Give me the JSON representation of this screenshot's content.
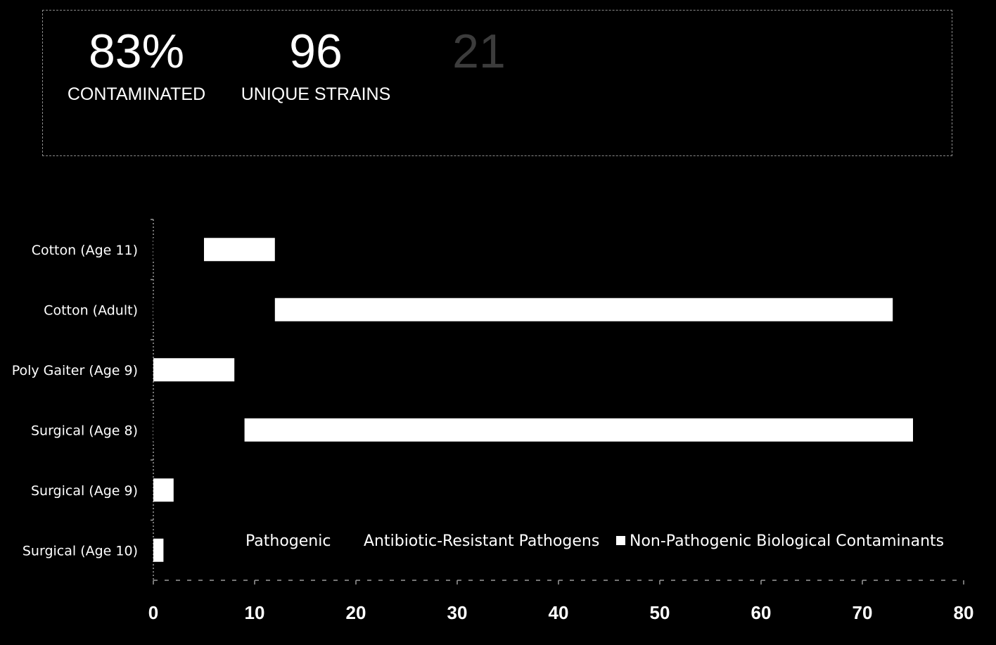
{
  "stats": [
    {
      "value": "83%",
      "label": "CONTAMINATED",
      "faded": false
    },
    {
      "value": "96",
      "label": "UNIQUE STRAINS",
      "faded": false
    },
    {
      "value": "21",
      "label": "",
      "faded": true
    },
    {
      "value": "",
      "label": "",
      "faded": true
    },
    {
      "value": "",
      "label": "",
      "faded": true
    }
  ],
  "chart_data": {
    "type": "bar",
    "orientation": "horizontal",
    "stacked": true,
    "categories": [
      "Cotton (Age 11)",
      "Cotton (Adult)",
      "Poly Gaiter (Age 9)",
      "Surgical (Age 8)",
      "Surgical (Age 9)",
      "Surgical (Age 10)"
    ],
    "series": [
      {
        "name": "Pathogenic",
        "values": [
          5,
          12,
          0,
          9,
          0,
          0
        ],
        "color": "#000000"
      },
      {
        "name": "Antibiotic-Resistant Pathogens",
        "values": [
          0,
          0,
          0,
          0,
          0,
          0
        ],
        "color": "#000000"
      },
      {
        "name": "Non-Pathogenic Biological Contaminants",
        "values": [
          7,
          61,
          8,
          66,
          2,
          1
        ],
        "color": "#ffffff"
      }
    ],
    "xlim": [
      0,
      80
    ],
    "xticks": [
      "0",
      "10",
      "20",
      "30",
      "40",
      "50",
      "60",
      "70",
      "80"
    ],
    "xlabel": "",
    "ylabel": "",
    "legend_position": "bottom",
    "grid": false
  }
}
